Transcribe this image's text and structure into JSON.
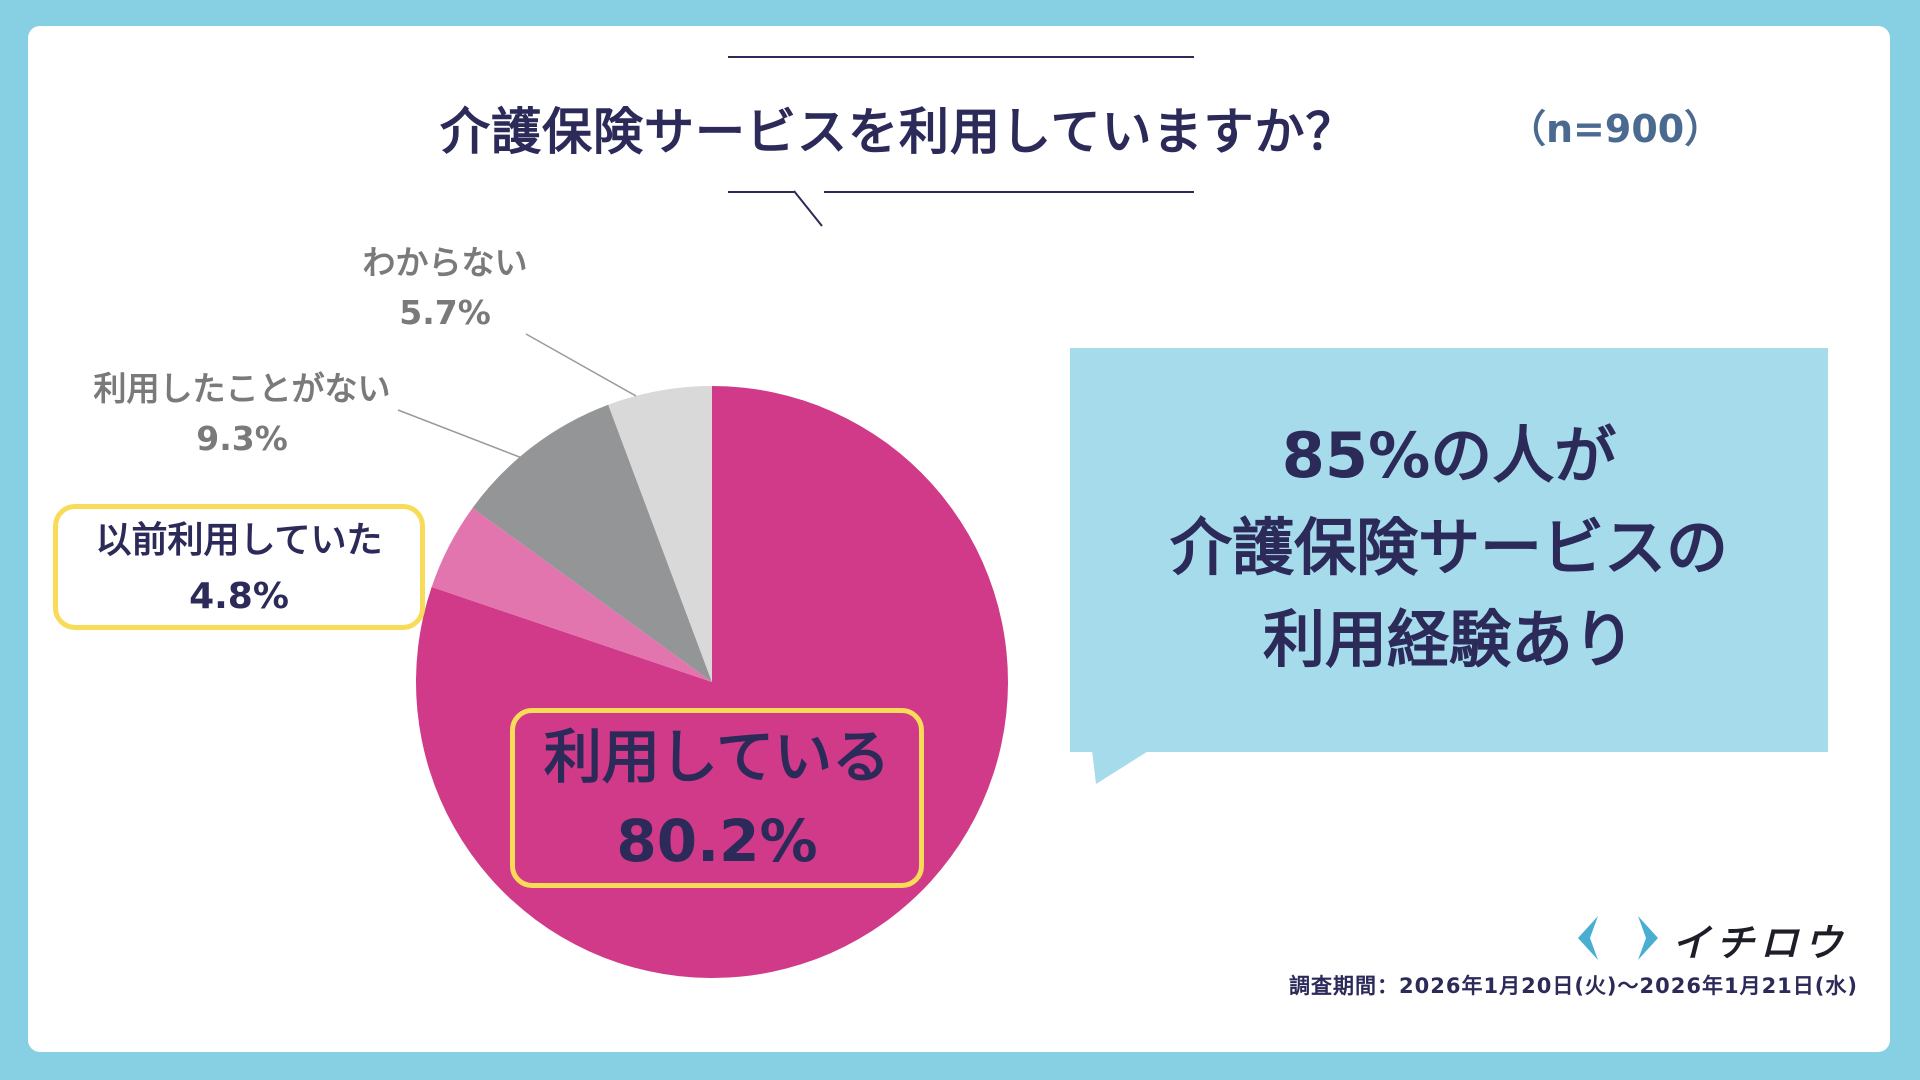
{
  "header": {
    "title": "介護保険サービスを利用していますか？",
    "sample_size": "（n=900）"
  },
  "chart_data": {
    "type": "pie",
    "slices": [
      {
        "label": "利用している",
        "value_text": "80.2%",
        "value": 80.2,
        "color": "#d03a88"
      },
      {
        "label": "以前利用していた",
        "value_text": "4.8%",
        "value": 4.8,
        "color": "#e274ae"
      },
      {
        "label": "利用したことがない",
        "value_text": "9.3%",
        "value": 9.3,
        "color": "#939596"
      },
      {
        "label": "わからない",
        "value_text": "5.7%",
        "value": 5.7,
        "color": "#d9d9d9"
      }
    ]
  },
  "callout": {
    "line1": "85%の人が",
    "line2": "介護保険サービスの",
    "line3": "利用経験あり"
  },
  "footer": {
    "brand": "イチロウ",
    "survey_period": "調査期間：2026年1月20日(火)〜2026年1月21日(水)"
  },
  "colors": {
    "background": "#87cfe3",
    "navy": "#2b2a59",
    "highlight_border": "#f8dc58",
    "callout_bg": "#a6dbec",
    "logo_blue": "#4aaed3"
  }
}
